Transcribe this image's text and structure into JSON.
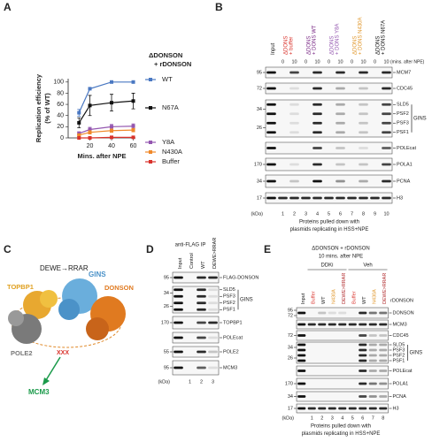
{
  "chart_data": {
    "type": "line",
    "letter": "A",
    "title": [
      "ΔDONSON",
      "+ rDONSON"
    ],
    "xlabel": "Mins. after NPE",
    "ylabel": [
      "Replication efficiency",
      "(% of WT)"
    ],
    "x": [
      10,
      20,
      40,
      60
    ],
    "xlim": [
      0,
      62
    ],
    "xticks": [
      20,
      40,
      60
    ],
    "ylim": [
      0,
      106
    ],
    "yticks": [
      0,
      20,
      40,
      60,
      80,
      100
    ],
    "series": [
      {
        "name": "WT",
        "color": "#4a78c2",
        "values": [
          45,
          88,
          100,
          100
        ],
        "errors": [
          6,
          2,
          0,
          0
        ]
      },
      {
        "name": "N67A",
        "color": "#111111",
        "values": [
          27,
          58,
          63,
          66
        ],
        "errors": [
          9,
          18,
          15,
          14
        ]
      },
      {
        "name": "Y8A",
        "color": "#9457b0",
        "values": [
          8,
          15,
          20,
          21
        ],
        "errors": [
          3,
          4,
          4,
          4
        ]
      },
      {
        "name": "N430A",
        "color": "#f0892a",
        "values": [
          5,
          10,
          13,
          14
        ],
        "errors": [
          2,
          3,
          3,
          3
        ]
      },
      {
        "name": "Buffer",
        "color": "#d9322b",
        "values": [
          0,
          0,
          1,
          1
        ],
        "errors": [
          0,
          0,
          0,
          0
        ]
      }
    ]
  },
  "panel_b": {
    "letter": "B",
    "input": "Input",
    "conditions": [
      {
        "label": [
          "ΔDONS",
          "+ buffer"
        ],
        "color": "#d9322b"
      },
      {
        "label": [
          "ΔDONS",
          "+ DONS WT"
        ],
        "color": "#7a2a86"
      },
      {
        "label": [
          "ΔDONS",
          "+ DONS Y8A"
        ],
        "color": "#9457b0"
      },
      {
        "label": [
          "ΔDONS",
          "+ DONS N430A"
        ],
        "color": "#e0962a"
      },
      {
        "label": [
          "ΔDONS",
          "+ DONS N67A"
        ],
        "color": "#111111"
      }
    ],
    "times": [
      0,
      10
    ],
    "time_unit": "(mins. after NPE)",
    "blots": [
      {
        "markers": [
          95
        ],
        "labels": [
          "MCM7"
        ]
      },
      {
        "markers": [
          72
        ],
        "labels": [
          "CDC45"
        ]
      },
      {
        "markers": [
          34,
          26
        ],
        "labels": [
          "SLD5",
          "PSF2",
          "PSF3",
          "PSF1"
        ],
        "group": "GINS"
      },
      {
        "markers": [],
        "labels": [
          "POLEcat"
        ]
      },
      {
        "markers": [
          170
        ],
        "labels": [
          "POLA1"
        ]
      },
      {
        "markers": [
          34
        ],
        "labels": [
          "PCNA"
        ]
      },
      {
        "markers": [
          17
        ],
        "labels": [
          "H3"
        ]
      }
    ],
    "lane_numbers": [
      1,
      2,
      3,
      4,
      5,
      6,
      7,
      8,
      9,
      10
    ],
    "kda": "(kDa)",
    "caption": [
      "Proteins pulled down with",
      "plasmids replicating in HSS+NPE"
    ]
  },
  "panel_c": {
    "letter": "C",
    "title": "DEWE→RRAR",
    "labels": {
      "gins": "GINS",
      "topbp1": "TOPBP1",
      "donson": "DONSON",
      "pole2": "POLE2",
      "mutation": "XXX",
      "mcm3": "MCM3"
    }
  },
  "panel_d": {
    "letter": "D",
    "title": "anti-FLAG IP",
    "lanes": [
      {
        "label": "Input",
        "color": "#111111"
      },
      {
        "label": "Control",
        "color": "#111111"
      },
      {
        "label": "WT",
        "color": "#111111"
      },
      {
        "label": "DEWE>RRAR",
        "color": "#111111"
      }
    ],
    "blots": [
      {
        "markers": [
          95
        ],
        "labels": [
          "FLAG-DONSON"
        ]
      },
      {
        "markers": [
          34,
          26
        ],
        "labels": [
          "SLD5",
          "PSF3",
          "PSF2",
          "PSF1"
        ],
        "group": "GINS"
      },
      {
        "markers": [
          170
        ],
        "labels": [
          "TOPBP1"
        ]
      },
      {
        "markers": [],
        "labels": [
          "POLEcat"
        ]
      },
      {
        "markers": [
          55
        ],
        "labels": [
          "POLE2"
        ]
      },
      {
        "markers": [
          95
        ],
        "labels": [
          "MCM3"
        ]
      }
    ],
    "lane_numbers": [
      1,
      2,
      3
    ],
    "kda": "(kDa)"
  },
  "panel_e": {
    "letter": "E",
    "title": [
      "ΔDONSON + rDONSON",
      "10 mins. after NPE"
    ],
    "groups": [
      "DDKi",
      "Veh"
    ],
    "lane_header": "rDONSON",
    "lanes": [
      {
        "label": "Input",
        "color": "#111111"
      },
      {
        "label": "Buffer",
        "color": "#d9322b"
      },
      {
        "label": "WT",
        "color": "#111111"
      },
      {
        "label": "N430A",
        "color": "#e0962a"
      },
      {
        "label": "DEWE>RRAR",
        "color": "#b0282a"
      },
      {
        "label": "Buffer",
        "color": "#d9322b"
      },
      {
        "label": "WT",
        "color": "#111111"
      },
      {
        "label": "N430A",
        "color": "#e0962a"
      },
      {
        "label": "DEWE>RRAR",
        "color": "#b0282a"
      }
    ],
    "blots": [
      {
        "markers": [
          95,
          72
        ],
        "labels": [
          "DONSON"
        ]
      },
      {
        "markers": [],
        "labels": [
          "MCM3"
        ]
      },
      {
        "markers": [
          72
        ],
        "labels": [
          "CDC45"
        ]
      },
      {
        "markers": [
          34,
          26
        ],
        "labels": [
          "SLD5",
          "PSF3",
          "PSF2",
          "PSF1"
        ],
        "group": "GINS"
      },
      {
        "markers": [],
        "labels": [
          "POLEcat"
        ]
      },
      {
        "markers": [
          170
        ],
        "labels": [
          "POLA1"
        ]
      },
      {
        "markers": [
          34
        ],
        "labels": [
          "PCNA"
        ]
      },
      {
        "markers": [
          17
        ],
        "labels": [
          "H3"
        ]
      }
    ],
    "lane_numbers": [
      1,
      2,
      3,
      4,
      5,
      6,
      7,
      8
    ],
    "kda": "(kDa)",
    "caption": [
      "Proteins pulled down with",
      "plasmids replicating in HSS+NPE"
    ]
  }
}
